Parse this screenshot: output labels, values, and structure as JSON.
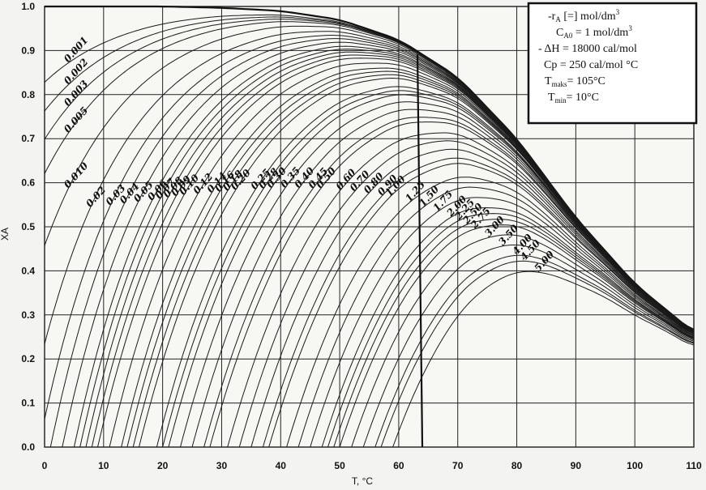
{
  "chart_data": {
    "type": "line",
    "title": "",
    "xlabel": "T, °C",
    "ylabel": "XA",
    "xlim": [
      0,
      110
    ],
    "ylim": [
      0.0,
      1.0
    ],
    "x_ticks": [
      "0",
      "10",
      "20",
      "30",
      "40",
      "50",
      "60",
      "70",
      "80",
      "90",
      "100",
      "110"
    ],
    "y_ticks": [
      "0.0",
      "0.1",
      "0.2",
      "0.3",
      "0.4",
      "0.5",
      "0.6",
      "0.7",
      "0.8",
      "0.9",
      "1.0"
    ],
    "grid": true,
    "equilibrium_curve": {
      "x": [
        0,
        10,
        20,
        30,
        40,
        50,
        60,
        70,
        80,
        90,
        100,
        110
      ],
      "y": [
        1.0,
        1.0,
        1.0,
        0.997,
        0.99,
        0.97,
        0.925,
        0.84,
        0.7,
        0.52,
        0.37,
        0.26
      ]
    },
    "rate_labels": [
      "0.001",
      "0.002",
      "0.003",
      "0.005",
      "0.010",
      "0.02",
      "0.03",
      "0.04",
      "0.05",
      "0.06",
      "0.07",
      "0.08",
      "0.09",
      "0.10",
      "0.12",
      "0.14",
      "0.16",
      "0.18",
      "0.20",
      "0.25",
      "0.28",
      "0.30",
      "0.35",
      "0.40",
      "0.45",
      "0.50",
      "0.60",
      "0.70",
      "0.80",
      "0.90",
      "1.00",
      "1.25",
      "1.50",
      "1.75",
      "2.00",
      "2.25",
      "2.50",
      "2.75",
      "3.00",
      "3.50",
      "4.00",
      "4.50",
      "5.00"
    ],
    "rate_x0": [
      -24,
      -20,
      -17,
      -14,
      -9,
      -4,
      -1,
      1,
      3,
      5,
      6,
      7,
      8,
      9,
      11,
      13,
      14,
      15,
      16,
      19,
      20,
      21,
      23,
      25,
      27,
      28,
      31,
      33,
      35,
      37,
      38,
      41,
      43,
      45,
      47,
      48,
      49,
      50,
      52,
      54,
      56,
      57,
      59
    ],
    "vertical_line": {
      "x": 64,
      "y_bottom": 0.0
    },
    "legend": {
      "line1": "-r",
      "line1_sub": "A",
      "line1_rest": " [=] mol/dm",
      "line1_sup": "3",
      "line2": "C",
      "line2_sub": "A0",
      "line2_rest": " =  1  mol/dm",
      "line2_sup": "3",
      "line3": "- ΔH = 18000 cal/mol",
      "line4": "Cp = 250 cal/mol °C",
      "line5": "T",
      "line5_sub": "maks",
      "line5_rest": "= 105°C",
      "line6": "T",
      "line6_sub": "min",
      "line6_rest": "=  10°C"
    }
  }
}
